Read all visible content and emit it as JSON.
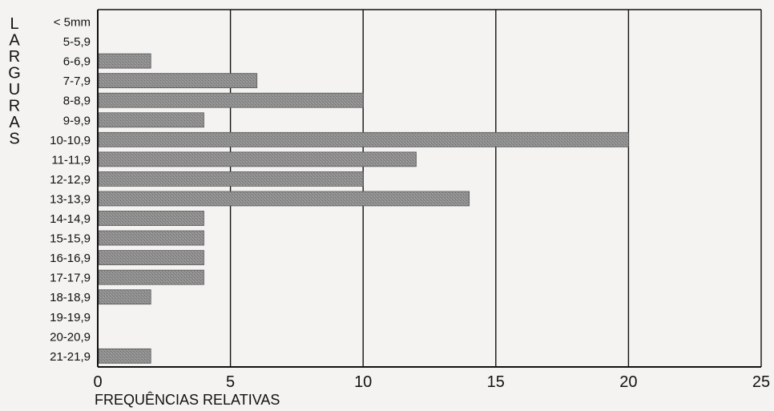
{
  "chart_data": {
    "type": "bar",
    "orientation": "horizontal",
    "ylabel": "LARGURAS",
    "xlabel": "FREQUÊNCIAS RELATIVAS",
    "categories": [
      "< 5mm",
      "5-5,9",
      "6-6,9",
      "7-7,9",
      "8-8,9",
      "9-9,9",
      "10-10,9",
      "11-11,9",
      "12-12,9",
      "13-13,9",
      "14-14,9",
      "15-15,9",
      "16-16,9",
      "17-17,9",
      "18-18,9",
      "19-19,9",
      "20-20,9",
      "21-21,9"
    ],
    "values": [
      0,
      0,
      2,
      6,
      10,
      4,
      20,
      12,
      10,
      14,
      4,
      4,
      4,
      4,
      2,
      0,
      0,
      2
    ],
    "xlim": [
      0,
      25
    ],
    "xticks": [
      "0",
      "5",
      "10",
      "15",
      "20",
      "25"
    ],
    "grid": true,
    "colors": {
      "bar": "#8a8a8a",
      "bar_stroke": "#5a5a5a",
      "grid": "#111111",
      "background": "#f4f3f1"
    }
  }
}
